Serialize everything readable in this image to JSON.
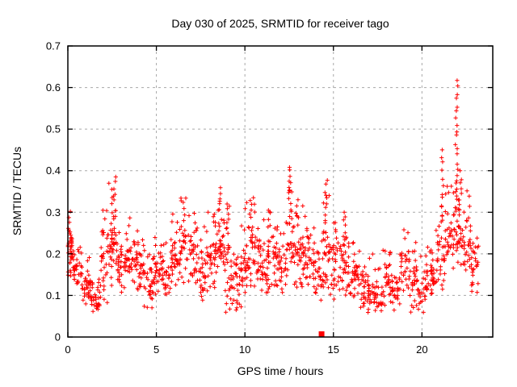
{
  "chart_data": {
    "type": "scatter",
    "title": "Day 030 of 2025, SRMTID for receiver tago",
    "xlabel": "GPS time / hours",
    "ylabel": "SRMTID / TECUs",
    "xlim": [
      0,
      24
    ],
    "ylim": [
      0,
      0.7
    ],
    "xticks": [
      0,
      5,
      10,
      15,
      20
    ],
    "yticks": [
      0,
      0.1,
      0.2,
      0.3,
      0.4,
      0.5,
      0.6,
      0.7
    ],
    "grid": true,
    "legend": "none",
    "marker": "plus",
    "marker_color": "#ff0000",
    "grid_color": "#a8a8a8",
    "frame_color": "#000000",
    "background": "#ffffff",
    "data_end_hour": 23.2,
    "band_bins_comment": "dense scatter band; each bin = [t_start_h, t_end_h, y_low_TECU, y_high_TECU, approx_point_count]",
    "band": [
      [
        0.0,
        0.3,
        0.13,
        0.285,
        40
      ],
      [
        0.3,
        0.8,
        0.12,
        0.215,
        34
      ],
      [
        0.8,
        1.3,
        0.06,
        0.17,
        34
      ],
      [
        1.3,
        1.8,
        0.05,
        0.125,
        30
      ],
      [
        1.8,
        2.3,
        0.08,
        0.28,
        34
      ],
      [
        2.3,
        2.8,
        0.11,
        0.33,
        34
      ],
      [
        2.8,
        3.3,
        0.1,
        0.24,
        34
      ],
      [
        3.3,
        3.8,
        0.12,
        0.26,
        34
      ],
      [
        3.8,
        4.3,
        0.09,
        0.23,
        34
      ],
      [
        4.3,
        4.8,
        0.05,
        0.19,
        30
      ],
      [
        4.8,
        5.3,
        0.1,
        0.22,
        32
      ],
      [
        5.3,
        5.8,
        0.09,
        0.21,
        32
      ],
      [
        5.8,
        6.3,
        0.11,
        0.27,
        34
      ],
      [
        6.3,
        6.8,
        0.12,
        0.3,
        34
      ],
      [
        6.8,
        7.3,
        0.1,
        0.27,
        32
      ],
      [
        7.3,
        7.8,
        0.07,
        0.24,
        32
      ],
      [
        7.8,
        8.3,
        0.09,
        0.27,
        34
      ],
      [
        8.3,
        8.8,
        0.1,
        0.32,
        34
      ],
      [
        8.8,
        9.3,
        0.05,
        0.3,
        34
      ],
      [
        9.3,
        9.8,
        0.06,
        0.22,
        32
      ],
      [
        9.8,
        10.3,
        0.08,
        0.29,
        34
      ],
      [
        10.3,
        10.8,
        0.09,
        0.31,
        34
      ],
      [
        10.8,
        11.3,
        0.08,
        0.26,
        32
      ],
      [
        11.3,
        11.8,
        0.09,
        0.29,
        32
      ],
      [
        11.8,
        12.3,
        0.1,
        0.245,
        32
      ],
      [
        12.3,
        12.8,
        0.11,
        0.33,
        32
      ],
      [
        12.8,
        13.3,
        0.1,
        0.3,
        32
      ],
      [
        13.3,
        13.8,
        0.11,
        0.275,
        32
      ],
      [
        13.8,
        14.3,
        0.08,
        0.235,
        32
      ],
      [
        14.3,
        14.8,
        0.09,
        0.3,
        32
      ],
      [
        14.8,
        15.3,
        0.08,
        0.245,
        32
      ],
      [
        15.3,
        15.8,
        0.09,
        0.285,
        32
      ],
      [
        15.8,
        16.3,
        0.07,
        0.215,
        32
      ],
      [
        16.3,
        16.8,
        0.06,
        0.195,
        30
      ],
      [
        16.8,
        17.3,
        0.05,
        0.175,
        30
      ],
      [
        17.3,
        17.8,
        0.04,
        0.155,
        28
      ],
      [
        17.8,
        18.3,
        0.06,
        0.19,
        30
      ],
      [
        18.3,
        18.8,
        0.05,
        0.175,
        28
      ],
      [
        18.8,
        19.3,
        0.1,
        0.24,
        30
      ],
      [
        19.3,
        19.8,
        0.04,
        0.2,
        30
      ],
      [
        19.8,
        20.3,
        0.05,
        0.19,
        30
      ],
      [
        20.3,
        20.8,
        0.08,
        0.2,
        30
      ],
      [
        20.8,
        21.3,
        0.1,
        0.28,
        32
      ],
      [
        21.3,
        21.8,
        0.14,
        0.34,
        34
      ],
      [
        21.8,
        22.3,
        0.16,
        0.36,
        34
      ],
      [
        22.3,
        22.8,
        0.13,
        0.335,
        32
      ],
      [
        22.8,
        23.2,
        0.1,
        0.245,
        26
      ]
    ],
    "spikes_comment": "vertical outlier columns; each = [hour, y_base, y_top, point_count]",
    "spikes": [
      [
        2.45,
        0.24,
        0.355,
        7
      ],
      [
        2.65,
        0.25,
        0.385,
        10
      ],
      [
        8.6,
        0.26,
        0.345,
        7
      ],
      [
        9.05,
        0.25,
        0.32,
        6
      ],
      [
        10.4,
        0.27,
        0.335,
        5
      ],
      [
        11.35,
        0.26,
        0.305,
        5
      ],
      [
        12.55,
        0.29,
        0.408,
        12
      ],
      [
        12.95,
        0.27,
        0.33,
        5
      ],
      [
        14.6,
        0.27,
        0.377,
        10
      ],
      [
        15.6,
        0.24,
        0.3,
        6
      ],
      [
        21.15,
        0.28,
        0.45,
        11
      ],
      [
        21.95,
        0.3,
        0.617,
        22
      ],
      [
        22.15,
        0.27,
        0.4,
        7
      ]
    ],
    "outlier_point": {
      "x": 14.33,
      "y": 0.007,
      "marker": "filled-square",
      "color": "#ff0000"
    }
  }
}
